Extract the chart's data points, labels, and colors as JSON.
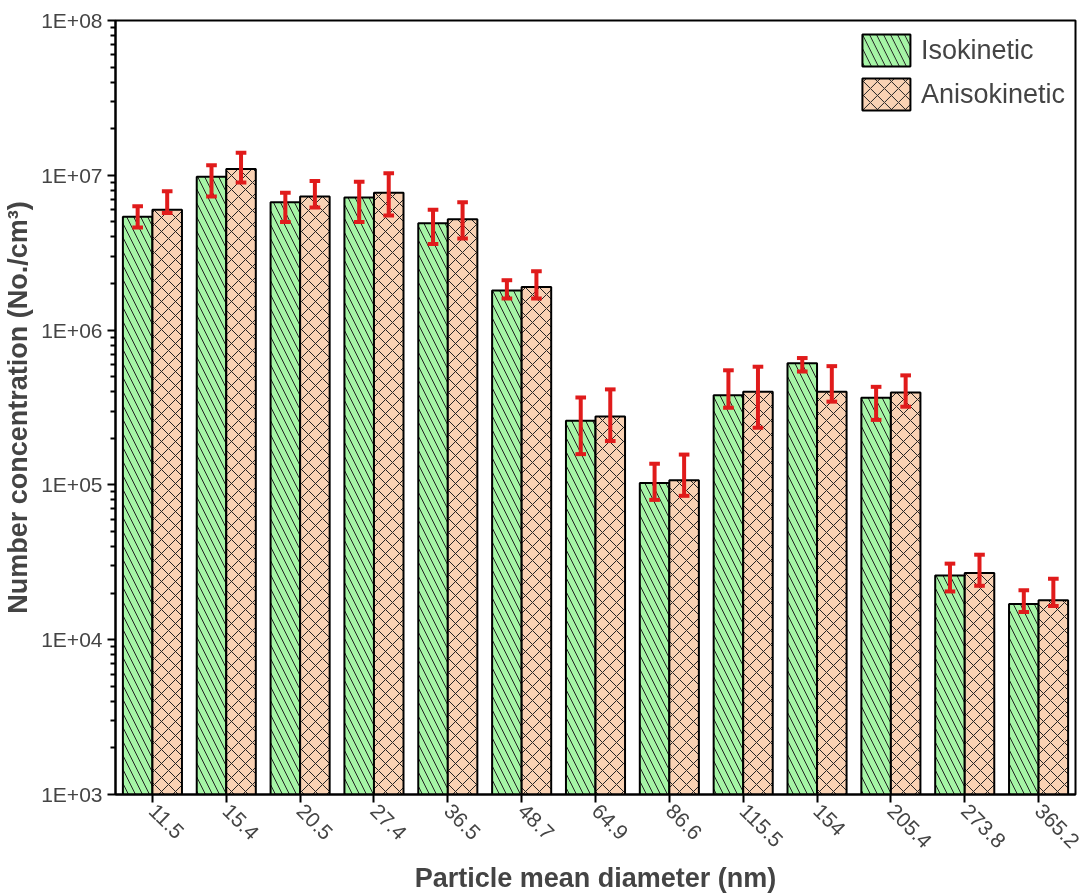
{
  "chart_data": {
    "type": "bar",
    "xlabel": "Particle mean diameter (nm)",
    "ylabel": "Number concentration (No./cm³)",
    "categories": [
      "11.5",
      "15.4",
      "20.5",
      "27.4",
      "36.5",
      "48.7",
      "64.9",
      "86.6",
      "115.5",
      "154",
      "205.4",
      "273.8",
      "365.2"
    ],
    "series": [
      {
        "name": "Isokinetic",
        "color": "#a6f5a6",
        "values": [
          5400000,
          9800000,
          6700000,
          7200000,
          4900000,
          1800000,
          260000,
          103000,
          380000,
          610000,
          365000,
          26000,
          17000
        ],
        "errors": [
          [
            4600000,
            6300000
          ],
          [
            7300000,
            11600000
          ],
          [
            5000000,
            7700000
          ],
          [
            5000000,
            9100000
          ],
          [
            3600000,
            6000000
          ],
          [
            1600000,
            2100000
          ],
          [
            158000,
            367000
          ],
          [
            80000,
            137000
          ],
          [
            315000,
            550000
          ],
          [
            540000,
            660000
          ],
          [
            263000,
            430000
          ],
          [
            20500,
            31000
          ],
          [
            15100,
            20900
          ]
        ]
      },
      {
        "name": "Anisokinetic",
        "color": "#f9d2b4",
        "values": [
          6000000,
          11000000,
          7300000,
          7700000,
          5200000,
          1900000,
          277000,
          107000,
          400000,
          400000,
          395000,
          27000,
          18000
        ],
        "errors": [
          [
            5700000,
            7900000
          ],
          [
            9000000,
            14000000
          ],
          [
            6200000,
            9200000
          ],
          [
            5500000,
            10300000
          ],
          [
            3900000,
            6700000
          ],
          [
            1600000,
            2400000
          ],
          [
            192000,
            414000
          ],
          [
            85000,
            157000
          ],
          [
            234000,
            580000
          ],
          [
            345000,
            585000
          ],
          [
            320000,
            510000
          ],
          [
            22300,
            35400
          ],
          [
            16500,
            24800
          ]
        ]
      }
    ],
    "log": true,
    "ylim": [
      1000,
      100000000
    ],
    "yticks": [
      {
        "value": 1000,
        "label": "1E+03"
      },
      {
        "value": 10000,
        "label": "1E+04"
      },
      {
        "value": 100000,
        "label": "1E+05"
      },
      {
        "value": 1000000,
        "label": "1E+06"
      },
      {
        "value": 10000000,
        "label": "1E+07"
      },
      {
        "value": 100000000,
        "label": "1E+08"
      }
    ],
    "grid": false,
    "legend": "top right"
  }
}
